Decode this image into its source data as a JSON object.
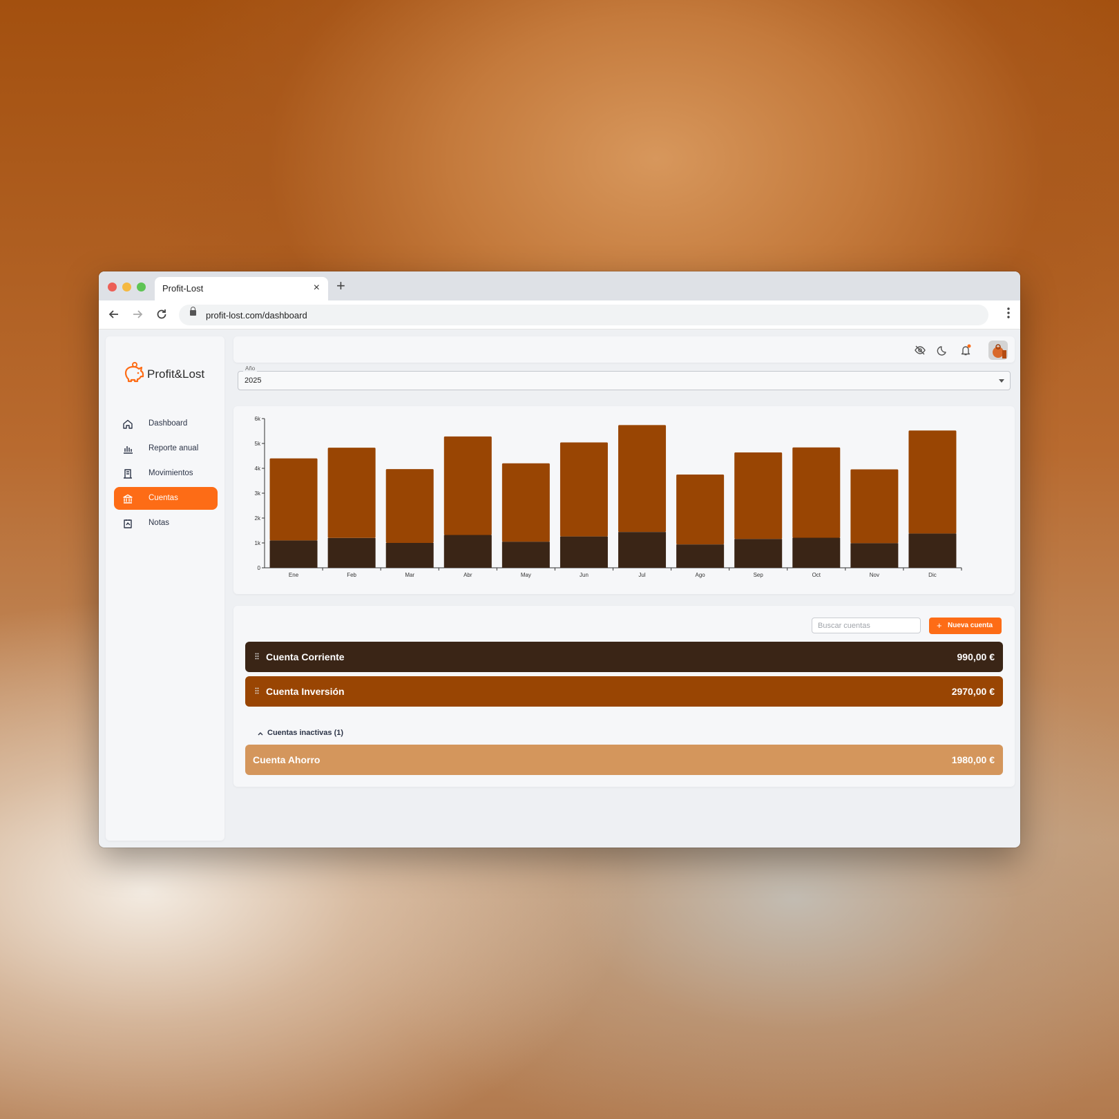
{
  "browser": {
    "tab_title": "Profit-Lost",
    "url": "profit-lost.com/dashboard",
    "close": "×",
    "new_tab": "+"
  },
  "app": {
    "brand": "Profit&Lost"
  },
  "sidebar": {
    "items": [
      {
        "label": "Dashboard",
        "icon": "home-icon",
        "active": false
      },
      {
        "label": "Reporte anual",
        "icon": "bar-chart-icon",
        "active": false
      },
      {
        "label": "Movimientos",
        "icon": "receipt-icon",
        "active": false
      },
      {
        "label": "Cuentas",
        "icon": "bank-icon",
        "active": true
      },
      {
        "label": "Notas",
        "icon": "note-icon",
        "active": false
      }
    ]
  },
  "topbar": {
    "icons": [
      "eye-off-icon",
      "moon-icon",
      "bell-icon",
      "avatar"
    ]
  },
  "year_select": {
    "legend": "Año",
    "value": "2025"
  },
  "chart_data": {
    "type": "bar",
    "stacked": true,
    "categories": [
      "Ene",
      "Feb",
      "Mar",
      "Abr",
      "May",
      "Jun",
      "Jul",
      "Ago",
      "Sep",
      "Oct",
      "Nov",
      "Dic"
    ],
    "series": [
      {
        "color": "#3a2516",
        "values": [
          1100,
          1200,
          1000,
          1320,
          1050,
          1260,
          1440,
          940,
          1160,
          1210,
          990,
          1380
        ]
      },
      {
        "color": "#994503",
        "values": [
          3300,
          3630,
          2970,
          3960,
          3150,
          3780,
          4300,
          2810,
          3480,
          3630,
          2970,
          4140
        ]
      }
    ],
    "ylim": [
      0,
      6000
    ],
    "yticks": [
      "0",
      "1k",
      "2k",
      "3k",
      "4k",
      "5k",
      "6k"
    ],
    "title": "",
    "xlabel": "",
    "ylabel": ""
  },
  "accounts": {
    "search_placeholder": "Buscar cuentas",
    "new_button": "Nueva cuenta",
    "plus": "+",
    "active": [
      {
        "name": "Cuenta Corriente",
        "amount": "990,00 €",
        "color": "#3a2516"
      },
      {
        "name": "Cuenta Inversión",
        "amount": "2970,00 €",
        "color": "#994503"
      }
    ],
    "inactive_label": "Cuentas inactivas (1)",
    "inactive": [
      {
        "name": "Cuenta Ahorro",
        "amount": "1980,00 €",
        "color": "#d4965c"
      }
    ]
  },
  "colors": {
    "accent": "#fd6c16"
  }
}
